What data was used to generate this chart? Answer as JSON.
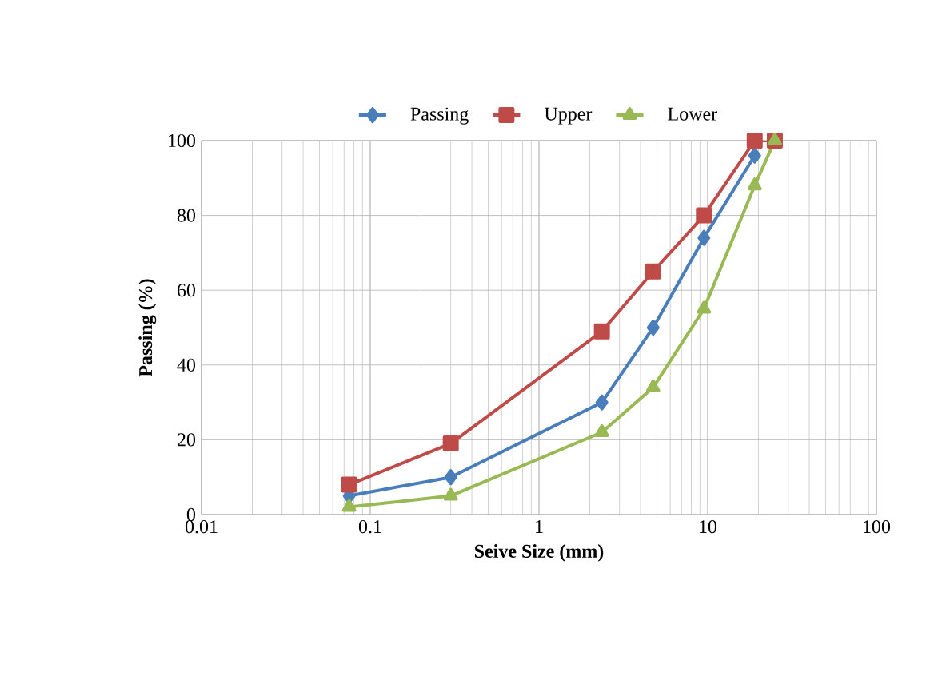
{
  "chart_data": {
    "type": "line",
    "xlabel": "Seive Size (mm)",
    "ylabel": "Passing (%)",
    "log": "x",
    "xlim": [
      0.01,
      100
    ],
    "xticks": [
      0.01,
      0.1,
      1,
      10,
      100
    ],
    "ylim": [
      0,
      100
    ],
    "yticks": [
      0,
      20,
      40,
      60,
      80,
      100
    ],
    "grid": true,
    "legend": "top",
    "series": [
      {
        "name": "Passing",
        "color": "#4a7ebb",
        "marker": "diamond",
        "x": [
          0.075,
          0.3,
          2.36,
          4.75,
          9.5,
          19
        ],
        "values": [
          5,
          10,
          30,
          50,
          74,
          96
        ]
      },
      {
        "name": "Upper",
        "color": "#be4b48",
        "marker": "square",
        "x": [
          0.075,
          0.3,
          2.36,
          4.75,
          9.5,
          19,
          25
        ],
        "values": [
          8,
          19,
          49,
          65,
          80,
          100,
          100
        ]
      },
      {
        "name": "Lower",
        "color": "#98b954",
        "marker": "triangle",
        "x": [
          0.075,
          0.3,
          2.36,
          4.75,
          9.5,
          19,
          25
        ],
        "values": [
          2,
          5,
          22,
          34,
          55,
          88,
          100
        ]
      }
    ]
  }
}
